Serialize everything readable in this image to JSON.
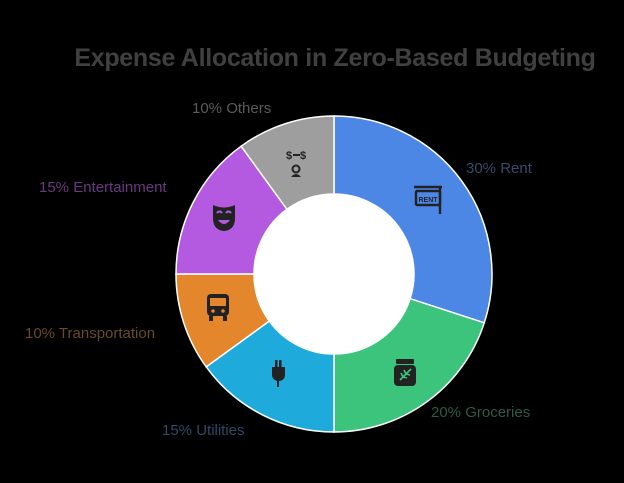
{
  "chart_data": {
    "type": "pie",
    "subtype": "donut",
    "title": "Expense Allocation in Zero-Based Budgeting",
    "categories": [
      "Rent",
      "Groceries",
      "Utilities",
      "Transportation",
      "Entertainment",
      "Others"
    ],
    "values": [
      30,
      20,
      15,
      10,
      15,
      10
    ],
    "unit": "%",
    "labels": [
      "30% Rent",
      "20% Groceries",
      "15% Utilities",
      "10% Transportation",
      "15% Entertainment",
      "10% Others"
    ],
    "colors": [
      "#4d87e6",
      "#3cc47c",
      "#1eaadb",
      "#e3862c",
      "#b45ae0",
      "#9e9e9e"
    ],
    "label_colors": [
      "#3a4a6a",
      "#2e5a46",
      "#2e4a66",
      "#6a4a2a",
      "#6a3a80",
      "#5a5a5a"
    ],
    "icons": [
      "rent-sign-icon",
      "jar-icon",
      "plug-icon",
      "bus-icon",
      "theater-mask-icon",
      "money-exchange-icon"
    ],
    "legend": "none (labels placed next to slices)",
    "start_angle": "12 o'clock, clockwise"
  },
  "title": "Expense Allocation in Zero-Based Budgeting"
}
